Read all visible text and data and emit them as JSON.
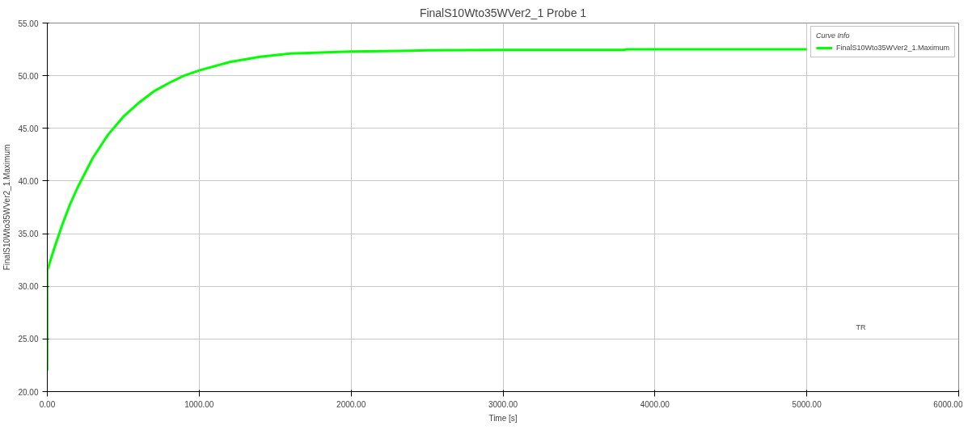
{
  "chart_data": {
    "type": "line",
    "title": "FinalS10Wto35WVer2_1 Probe 1",
    "xlabel": "Time [s]",
    "ylabel": "FinalS10Wto35WVer2_1.Maximum",
    "legend_title": "Curve Info",
    "annotations": [
      "TR"
    ],
    "x": [
      0,
      0,
      50,
      100,
      150,
      200,
      300,
      400,
      500,
      600,
      700,
      800,
      900,
      1000,
      1200,
      1400,
      1600,
      1800,
      2000,
      2500,
      3000,
      3500,
      3800,
      3810,
      4500,
      5000
    ],
    "series": [
      {
        "name": "FinalS10Wto35WVer2_1.Maximum",
        "color": "#00ff00",
        "values": [
          22.0,
          31.5,
          33.8,
          35.9,
          37.8,
          39.4,
          42.2,
          44.4,
          46.1,
          47.4,
          48.5,
          49.3,
          50.0,
          50.5,
          51.3,
          51.8,
          52.1,
          52.2,
          52.3,
          52.4,
          52.45,
          52.45,
          52.45,
          52.5,
          52.5,
          52.5
        ]
      }
    ],
    "xlim": [
      0,
      6000
    ],
    "ylim": [
      20,
      55
    ],
    "xticks": [
      {
        "value": 0,
        "label": "0.00"
      },
      {
        "value": 1000,
        "label": "1000.00"
      },
      {
        "value": 2000,
        "label": "2000.00"
      },
      {
        "value": 3000,
        "label": "3000.00"
      },
      {
        "value": 4000,
        "label": "4000.00"
      },
      {
        "value": 5000,
        "label": "5000.00"
      },
      {
        "value": 6000,
        "label": "6000.00"
      }
    ],
    "yticks": [
      {
        "value": 20,
        "label": "20.00"
      },
      {
        "value": 25,
        "label": "25.00"
      },
      {
        "value": 30,
        "label": "30.00"
      },
      {
        "value": 35,
        "label": "35.00"
      },
      {
        "value": 40,
        "label": "40.00"
      },
      {
        "value": 45,
        "label": "45.00"
      },
      {
        "value": 50,
        "label": "50.00"
      },
      {
        "value": 55,
        "label": "55.00"
      }
    ],
    "grid": true,
    "legend": "top right",
    "line_style": "solid",
    "marker": "none"
  }
}
